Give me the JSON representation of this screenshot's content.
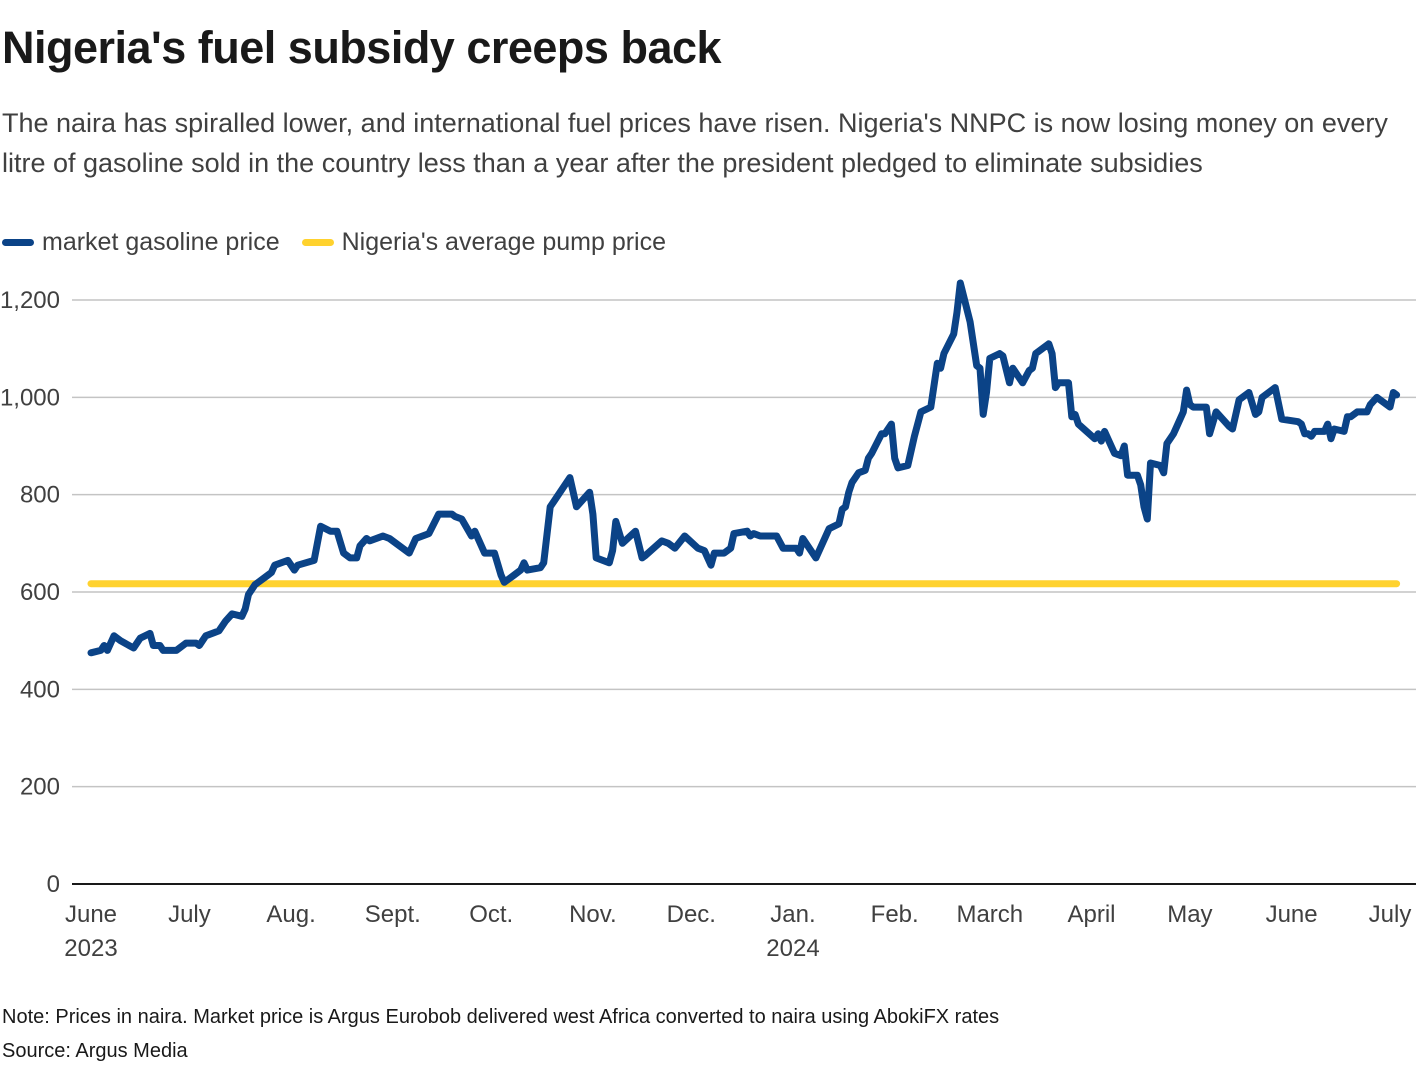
{
  "title": "Nigeria's fuel subsidy creeps back",
  "subtitle": "The naira has spiralled lower, and international fuel prices have risen. Nigeria's NNPC is now losing money on every litre of gasoline sold in the country less than a year after the president pledged to eliminate subsidies",
  "note": "Note: Prices in naira. Market price is Argus Eurobob delivered west Africa converted to naira using AbokiFX rates",
  "source": "Source: Argus Media",
  "chart_data": {
    "type": "line",
    "title": "Nigeria's fuel subsidy creeps back",
    "xlabel": "",
    "ylabel": "",
    "ylim": [
      0,
      1200
    ],
    "xlim": [
      "2023-06-01",
      "2024-07-03"
    ],
    "grid": true,
    "legend_placement": "top-left",
    "y_ticks": [
      {
        "value": 0,
        "label": "0"
      },
      {
        "value": 200,
        "label": "200"
      },
      {
        "value": 400,
        "label": "400"
      },
      {
        "value": 600,
        "label": "600"
      },
      {
        "value": 800,
        "label": "800"
      },
      {
        "value": 1000,
        "label": "1,000"
      },
      {
        "value": 1200,
        "label": "1,200"
      }
    ],
    "x_ticks": [
      {
        "date": "2023-06-01",
        "label": "June",
        "sublabel": "2023"
      },
      {
        "date": "2023-07-01",
        "label": "July"
      },
      {
        "date": "2023-08-01",
        "label": "Aug."
      },
      {
        "date": "2023-09-01",
        "label": "Sept."
      },
      {
        "date": "2023-10-01",
        "label": "Oct."
      },
      {
        "date": "2023-11-01",
        "label": "Nov."
      },
      {
        "date": "2023-12-01",
        "label": "Dec."
      },
      {
        "date": "2024-01-01",
        "label": "Jan.",
        "sublabel": "2024"
      },
      {
        "date": "2024-02-01",
        "label": "Feb."
      },
      {
        "date": "2024-03-01",
        "label": "March"
      },
      {
        "date": "2024-04-01",
        "label": "April"
      },
      {
        "date": "2024-05-01",
        "label": "May"
      },
      {
        "date": "2024-06-01",
        "label": "June"
      },
      {
        "date": "2024-07-01",
        "label": "July"
      }
    ],
    "series": [
      {
        "name": "market gasoline price",
        "color": "#0b4387",
        "points": [
          [
            "2023-06-01",
            475
          ],
          [
            "2023-06-04",
            480
          ],
          [
            "2023-06-05",
            490
          ],
          [
            "2023-06-06",
            480
          ],
          [
            "2023-06-08",
            510
          ],
          [
            "2023-06-10",
            500
          ],
          [
            "2023-06-14",
            485
          ],
          [
            "2023-06-16",
            505
          ],
          [
            "2023-06-19",
            515
          ],
          [
            "2023-06-20",
            490
          ],
          [
            "2023-06-22",
            490
          ],
          [
            "2023-06-23",
            480
          ],
          [
            "2023-06-27",
            480
          ],
          [
            "2023-06-30",
            495
          ],
          [
            "2023-07-03",
            495
          ],
          [
            "2023-07-04",
            490
          ],
          [
            "2023-07-06",
            510
          ],
          [
            "2023-07-10",
            520
          ],
          [
            "2023-07-12",
            540
          ],
          [
            "2023-07-14",
            555
          ],
          [
            "2023-07-17",
            550
          ],
          [
            "2023-07-18",
            565
          ],
          [
            "2023-07-19",
            595
          ],
          [
            "2023-07-21",
            615
          ],
          [
            "2023-07-25",
            635
          ],
          [
            "2023-07-26",
            640
          ],
          [
            "2023-07-27",
            655
          ],
          [
            "2023-07-31",
            665
          ],
          [
            "2023-08-02",
            645
          ],
          [
            "2023-08-03",
            655
          ],
          [
            "2023-08-08",
            665
          ],
          [
            "2023-08-10",
            735
          ],
          [
            "2023-08-13",
            725
          ],
          [
            "2023-08-15",
            725
          ],
          [
            "2023-08-17",
            680
          ],
          [
            "2023-08-19",
            670
          ],
          [
            "2023-08-21",
            670
          ],
          [
            "2023-08-22",
            695
          ],
          [
            "2023-08-24",
            710
          ],
          [
            "2023-08-25",
            705
          ],
          [
            "2023-08-29",
            715
          ],
          [
            "2023-08-31",
            710
          ],
          [
            "2023-09-04",
            690
          ],
          [
            "2023-09-06",
            680
          ],
          [
            "2023-09-08",
            710
          ],
          [
            "2023-09-12",
            720
          ],
          [
            "2023-09-15",
            760
          ],
          [
            "2023-09-19",
            760
          ],
          [
            "2023-09-20",
            755
          ],
          [
            "2023-09-22",
            750
          ],
          [
            "2023-09-25",
            715
          ],
          [
            "2023-09-26",
            725
          ],
          [
            "2023-09-29",
            680
          ],
          [
            "2023-10-02",
            680
          ],
          [
            "2023-10-04",
            635
          ],
          [
            "2023-10-05",
            620
          ],
          [
            "2023-10-08",
            635
          ],
          [
            "2023-10-10",
            645
          ],
          [
            "2023-10-11",
            660
          ],
          [
            "2023-10-12",
            645
          ],
          [
            "2023-10-16",
            650
          ],
          [
            "2023-10-17",
            660
          ],
          [
            "2023-10-19",
            775
          ],
          [
            "2023-10-20",
            785
          ],
          [
            "2023-10-25",
            835
          ],
          [
            "2023-10-27",
            775
          ],
          [
            "2023-10-31",
            805
          ],
          [
            "2023-11-01",
            760
          ],
          [
            "2023-11-02",
            670
          ],
          [
            "2023-11-06",
            660
          ],
          [
            "2023-11-07",
            685
          ],
          [
            "2023-11-08",
            745
          ],
          [
            "2023-11-10",
            700
          ],
          [
            "2023-11-14",
            725
          ],
          [
            "2023-11-16",
            670
          ],
          [
            "2023-11-17",
            675
          ],
          [
            "2023-11-22",
            705
          ],
          [
            "2023-11-24",
            700
          ],
          [
            "2023-11-26",
            690
          ],
          [
            "2023-11-29",
            715
          ],
          [
            "2023-12-03",
            690
          ],
          [
            "2023-12-05",
            685
          ],
          [
            "2023-12-06",
            670
          ],
          [
            "2023-12-07",
            655
          ],
          [
            "2023-12-08",
            680
          ],
          [
            "2023-12-11",
            680
          ],
          [
            "2023-12-13",
            690
          ],
          [
            "2023-12-14",
            720
          ],
          [
            "2023-12-18",
            725
          ],
          [
            "2023-12-19",
            715
          ],
          [
            "2023-12-20",
            720
          ],
          [
            "2023-12-22",
            715
          ],
          [
            "2023-12-27",
            715
          ],
          [
            "2023-12-29",
            690
          ],
          [
            "2024-01-02",
            690
          ],
          [
            "2024-01-03",
            680
          ],
          [
            "2024-01-04",
            710
          ],
          [
            "2024-01-08",
            670
          ],
          [
            "2024-01-10",
            700
          ],
          [
            "2024-01-12",
            730
          ],
          [
            "2024-01-15",
            740
          ],
          [
            "2024-01-16",
            770
          ],
          [
            "2024-01-17",
            775
          ],
          [
            "2024-01-18",
            805
          ],
          [
            "2024-01-19",
            825
          ],
          [
            "2024-01-21",
            845
          ],
          [
            "2024-01-23",
            850
          ],
          [
            "2024-01-24",
            875
          ],
          [
            "2024-01-25",
            885
          ],
          [
            "2024-01-28",
            925
          ],
          [
            "2024-01-29",
            925
          ],
          [
            "2024-01-31",
            945
          ],
          [
            "2024-02-01",
            875
          ],
          [
            "2024-02-02",
            855
          ],
          [
            "2024-02-05",
            860
          ],
          [
            "2024-02-07",
            920
          ],
          [
            "2024-02-09",
            970
          ],
          [
            "2024-02-12",
            980
          ],
          [
            "2024-02-14",
            1070
          ],
          [
            "2024-02-15",
            1060
          ],
          [
            "2024-02-16",
            1090
          ],
          [
            "2024-02-19",
            1130
          ],
          [
            "2024-02-20",
            1175
          ],
          [
            "2024-02-21",
            1235
          ],
          [
            "2024-02-24",
            1155
          ],
          [
            "2024-02-26",
            1065
          ],
          [
            "2024-02-27",
            1060
          ],
          [
            "2024-02-28",
            965
          ],
          [
            "2024-02-29",
            1010
          ],
          [
            "2024-03-01",
            1080
          ],
          [
            "2024-03-04",
            1090
          ],
          [
            "2024-03-05",
            1085
          ],
          [
            "2024-03-07",
            1030
          ],
          [
            "2024-03-08",
            1060
          ],
          [
            "2024-03-11",
            1030
          ],
          [
            "2024-03-13",
            1055
          ],
          [
            "2024-03-14",
            1060
          ],
          [
            "2024-03-15",
            1090
          ],
          [
            "2024-03-19",
            1110
          ],
          [
            "2024-03-20",
            1090
          ],
          [
            "2024-03-21",
            1020
          ],
          [
            "2024-03-22",
            1030
          ],
          [
            "2024-03-25",
            1030
          ],
          [
            "2024-03-26",
            960
          ],
          [
            "2024-03-27",
            965
          ],
          [
            "2024-03-28",
            945
          ],
          [
            "2024-04-02",
            915
          ],
          [
            "2024-04-03",
            925
          ],
          [
            "2024-04-04",
            910
          ],
          [
            "2024-04-05",
            930
          ],
          [
            "2024-04-08",
            885
          ],
          [
            "2024-04-10",
            880
          ],
          [
            "2024-04-11",
            900
          ],
          [
            "2024-04-12",
            840
          ],
          [
            "2024-04-15",
            840
          ],
          [
            "2024-04-16",
            820
          ],
          [
            "2024-04-17",
            775
          ],
          [
            "2024-04-18",
            750
          ],
          [
            "2024-04-19",
            865
          ],
          [
            "2024-04-22",
            860
          ],
          [
            "2024-04-23",
            845
          ],
          [
            "2024-04-24",
            905
          ],
          [
            "2024-04-26",
            925
          ],
          [
            "2024-04-27",
            940
          ],
          [
            "2024-04-29",
            970
          ],
          [
            "2024-04-30",
            1015
          ],
          [
            "2024-05-01",
            985
          ],
          [
            "2024-05-02",
            980
          ],
          [
            "2024-05-06",
            980
          ],
          [
            "2024-05-07",
            925
          ],
          [
            "2024-05-09",
            970
          ],
          [
            "2024-05-13",
            940
          ],
          [
            "2024-05-14",
            935
          ],
          [
            "2024-05-16",
            995
          ],
          [
            "2024-05-19",
            1010
          ],
          [
            "2024-05-21",
            965
          ],
          [
            "2024-05-22",
            970
          ],
          [
            "2024-05-23",
            1000
          ],
          [
            "2024-05-27",
            1020
          ],
          [
            "2024-05-29",
            955
          ],
          [
            "2024-06-03",
            950
          ],
          [
            "2024-06-04",
            945
          ],
          [
            "2024-06-05",
            925
          ],
          [
            "2024-06-06",
            925
          ],
          [
            "2024-06-07",
            920
          ],
          [
            "2024-06-08",
            930
          ],
          [
            "2024-06-11",
            930
          ],
          [
            "2024-06-12",
            945
          ],
          [
            "2024-06-13",
            915
          ],
          [
            "2024-06-14",
            935
          ],
          [
            "2024-06-17",
            930
          ],
          [
            "2024-06-18",
            960
          ],
          [
            "2024-06-19",
            960
          ],
          [
            "2024-06-21",
            970
          ],
          [
            "2024-06-24",
            970
          ],
          [
            "2024-06-25",
            985
          ],
          [
            "2024-06-27",
            1000
          ],
          [
            "2024-07-01",
            980
          ],
          [
            "2024-07-02",
            1010
          ],
          [
            "2024-07-03",
            1005
          ]
        ]
      },
      {
        "name": "Nigeria's average pump price",
        "color": "#ffd22e",
        "points": [
          [
            "2023-06-01",
            617
          ],
          [
            "2024-07-03",
            617
          ]
        ]
      }
    ]
  }
}
